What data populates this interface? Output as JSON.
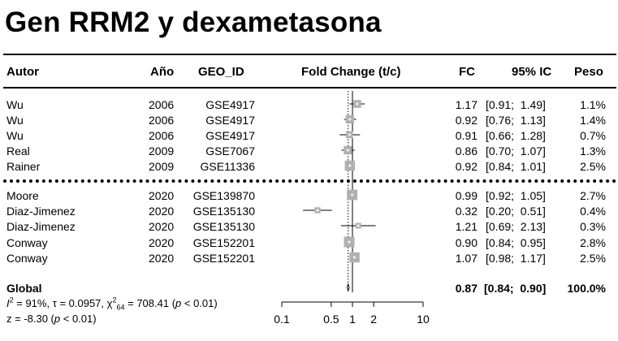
{
  "title": "Gen RRM2 y dexametasona",
  "headers": {
    "autor": "Autor",
    "anio": "Año",
    "geo": "GEO_ID",
    "fold": "Fold Change (t/c)",
    "fc": "FC",
    "ic": "95% IC",
    "peso": "Peso"
  },
  "rows": [
    {
      "autor": "Wu",
      "anio": "2006",
      "geo": "GSE4917",
      "fc": "1.17",
      "ic": "[0.91;  1.49]",
      "peso": "1.1%"
    },
    {
      "autor": "Wu",
      "anio": "2006",
      "geo": "GSE4917",
      "fc": "0.92",
      "ic": "[0.76;  1.13]",
      "peso": "1.4%"
    },
    {
      "autor": "Wu",
      "anio": "2006",
      "geo": "GSE4917",
      "fc": "0.91",
      "ic": "[0.66;  1.28]",
      "peso": "0.7%"
    },
    {
      "autor": "Real",
      "anio": "2009",
      "geo": "GSE7067",
      "fc": "0.86",
      "ic": "[0.70;  1.07]",
      "peso": "1.3%"
    },
    {
      "autor": "Rainer",
      "anio": "2009",
      "geo": "GSE11336",
      "fc": "0.92",
      "ic": "[0.84;  1.01]",
      "peso": "2.5%"
    },
    {
      "autor": "Moore",
      "anio": "2020",
      "geo": "GSE139870",
      "fc": "0.99",
      "ic": "[0.92;  1.05]",
      "peso": "2.7%"
    },
    {
      "autor": "Diaz-Jimenez",
      "anio": "2020",
      "geo": "GSE135130",
      "fc": "0.32",
      "ic": "[0.20;  0.51]",
      "peso": "0.4%"
    },
    {
      "autor": "Diaz-Jimenez",
      "anio": "2020",
      "geo": "GSE135130",
      "fc": "1.21",
      "ic": "[0.69;  2.13]",
      "peso": "0.3%"
    },
    {
      "autor": "Conway",
      "anio": "2020",
      "geo": "GSE152201",
      "fc": "0.90",
      "ic": "[0.84;  0.95]",
      "peso": "2.8%"
    },
    {
      "autor": "Conway",
      "anio": "2020",
      "geo": "GSE152201",
      "fc": "1.07",
      "ic": "[0.98;  1.17]",
      "peso": "2.5%"
    }
  ],
  "global": {
    "label": "Global",
    "fc": "0.87",
    "ic": "[0.84;  0.90]",
    "peso": "100.0%",
    "i2_prefix": "I",
    "i2_sup": "2",
    "i2_text": " = 91%, τ = 0.0957, χ",
    "chi_sup": "2",
    "chi_sub": "64",
    "chi_text": " = 708.41 (",
    "p_label": "p",
    "p_text": " < 0.01)",
    "z_text": "z = -8.30 (",
    "z_p_label": "p",
    "z_p_text": " < 0.01)"
  },
  "chart_data": {
    "type": "forest",
    "scale": "log",
    "xlim": [
      0.1,
      10
    ],
    "reference_line": 1,
    "pooled_line": 0.87,
    "xticks": [
      "0.1",
      "0.5",
      "1",
      "2",
      "10"
    ],
    "xtick_values": [
      0.1,
      0.5,
      1,
      2,
      10
    ],
    "studies": [
      {
        "fc": 1.17,
        "lo": 0.91,
        "hi": 1.49,
        "weight": 1.1
      },
      {
        "fc": 0.92,
        "lo": 0.76,
        "hi": 1.13,
        "weight": 1.4
      },
      {
        "fc": 0.91,
        "lo": 0.66,
        "hi": 1.28,
        "weight": 0.7
      },
      {
        "fc": 0.86,
        "lo": 0.7,
        "hi": 1.07,
        "weight": 1.3
      },
      {
        "fc": 0.92,
        "lo": 0.84,
        "hi": 1.01,
        "weight": 2.5
      },
      {
        "fc": 0.99,
        "lo": 0.92,
        "hi": 1.05,
        "weight": 2.7
      },
      {
        "fc": 0.32,
        "lo": 0.2,
        "hi": 0.51,
        "weight": 0.4
      },
      {
        "fc": 1.21,
        "lo": 0.69,
        "hi": 2.13,
        "weight": 0.3
      },
      {
        "fc": 0.9,
        "lo": 0.84,
        "hi": 0.95,
        "weight": 2.8
      },
      {
        "fc": 1.07,
        "lo": 0.98,
        "hi": 1.17,
        "weight": 2.5
      }
    ],
    "pooled": {
      "fc": 0.87,
      "lo": 0.84,
      "hi": 0.9
    },
    "colors": {
      "box": "#b0b0b0",
      "line": "#000000"
    }
  }
}
